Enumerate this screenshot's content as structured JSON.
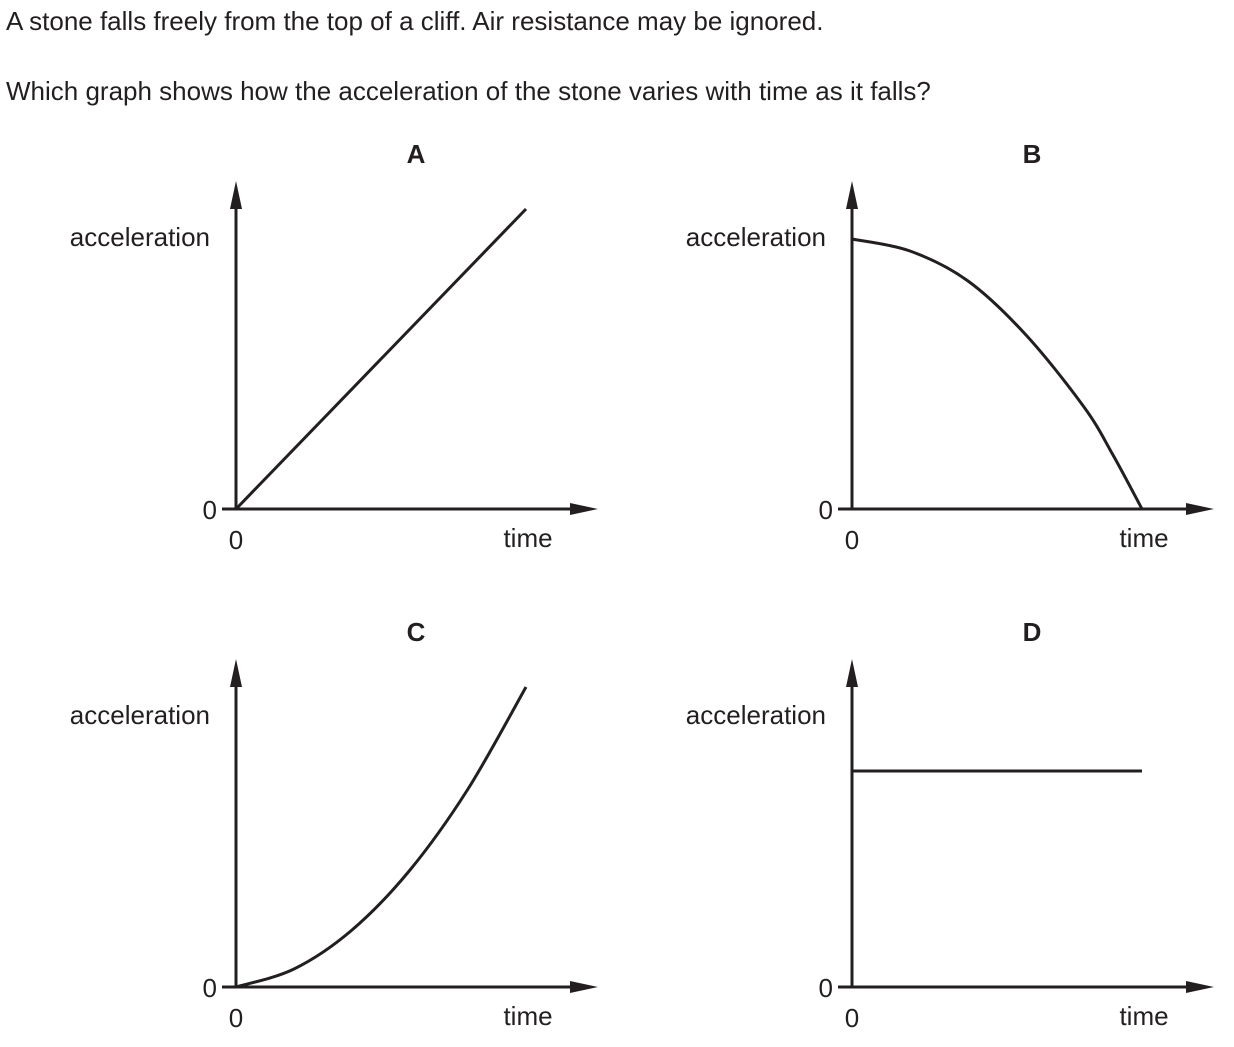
{
  "question": {
    "line1": "A stone falls freely from the top of a cliff. Air resistance may be ignored.",
    "line2": "Which graph shows how the acceleration of the stone varies with time as it falls?"
  },
  "colors": {
    "ink": "#231f20",
    "background": "#ffffff"
  },
  "chart_data": [
    {
      "type": "line",
      "title": "A",
      "ylabel": "acceleration",
      "xlabel": "time",
      "x_tick": "0",
      "y_tick": "0",
      "shape": "linear increase from origin",
      "x": [
        0,
        1
      ],
      "y": [
        0,
        1
      ],
      "ylim": [
        0,
        1.1
      ],
      "xlim": [
        0,
        1.25
      ]
    },
    {
      "type": "line",
      "title": "B",
      "ylabel": "acceleration",
      "xlabel": "time",
      "x_tick": "0",
      "y_tick": "0",
      "shape": "concave-down decrease to zero",
      "x": [
        0,
        0.2,
        0.4,
        0.6,
        0.8,
        0.9,
        1
      ],
      "y": [
        0.9,
        0.86,
        0.76,
        0.58,
        0.34,
        0.18,
        0
      ],
      "ylim": [
        0,
        1.1
      ],
      "xlim": [
        0,
        1.25
      ]
    },
    {
      "type": "line",
      "title": "C",
      "ylabel": "acceleration",
      "xlabel": "time",
      "x_tick": "0",
      "y_tick": "0",
      "shape": "concave-up increase from origin",
      "x": [
        0,
        0.2,
        0.4,
        0.6,
        0.8,
        1
      ],
      "y": [
        0,
        0.06,
        0.19,
        0.39,
        0.66,
        1
      ],
      "ylim": [
        0,
        1.1
      ],
      "xlim": [
        0,
        1.25
      ]
    },
    {
      "type": "line",
      "title": "D",
      "ylabel": "acceleration",
      "xlabel": "time",
      "x_tick": "0",
      "y_tick": "0",
      "shape": "constant non-zero",
      "x": [
        0,
        1
      ],
      "y": [
        0.72,
        0.72
      ],
      "ylim": [
        0,
        1.1
      ],
      "xlim": [
        0,
        1.25
      ]
    }
  ]
}
